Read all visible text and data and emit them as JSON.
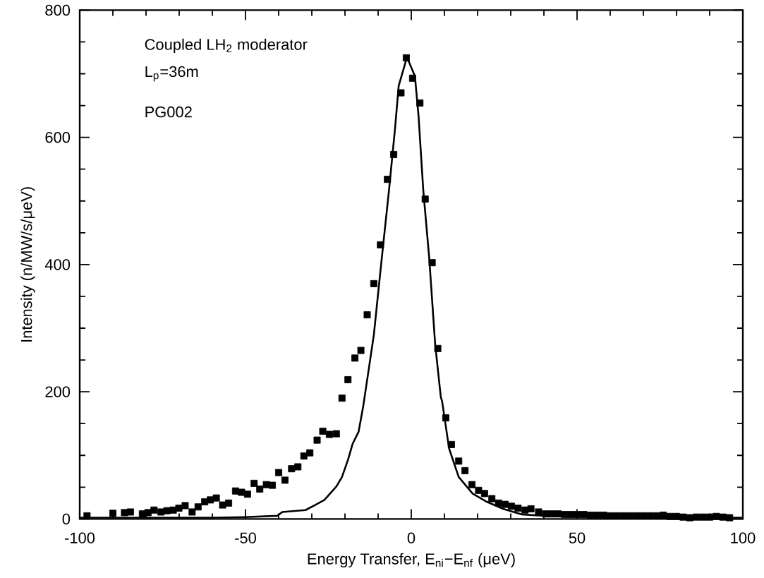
{
  "chart_data": {
    "type": "scatter",
    "xlabel": "Energy Transfer, E$_{ni}$−E$_{nf}$ (μeV)",
    "ylabel": "Intensity (n/MW/s/μeV)",
    "annotations": [
      "Coupled LH$_{2}$ moderator",
      "L$_{p}$=36m",
      "PG002"
    ],
    "xlim": [
      -100,
      100
    ],
    "ylim": [
      0,
      800
    ],
    "xticks": [
      -100,
      -50,
      0,
      50,
      100
    ],
    "yticks": [
      0,
      200,
      400,
      600,
      800
    ],
    "grid": false,
    "series": [
      {
        "marker": "square",
        "color": "#000000",
        "x": [
          -97.8,
          -90,
          -86.5,
          -84.7,
          -81.1,
          -79.4,
          -77.6,
          -75.5,
          -73.7,
          -71.8,
          -70.1,
          -68.2,
          -66.1,
          -64.3,
          -62.3,
          -60.6,
          -58.8,
          -56.9,
          -55.1,
          -53.0,
          -51.2,
          -49.4,
          -47.4,
          -45.7,
          -43.7,
          -41.9,
          -40.0,
          -38.1,
          -36.1,
          -34.2,
          -32.4,
          -30.6,
          -28.4,
          -26.7,
          -24.7,
          -22.6,
          -20.9,
          -19.1,
          -17.0,
          -15.2,
          -13.3,
          -11.3,
          -9.3,
          -7.2,
          -5.3,
          -3.1,
          -1.5,
          0.4,
          2.6,
          4.2,
          6.3,
          8.0,
          10.4,
          12.1,
          14.3,
          16.2,
          18.3,
          20.3,
          22.1,
          24.3,
          26.3,
          28.3,
          30.2,
          32.2,
          34.3,
          36.1,
          38.4,
          40.5,
          42.4,
          44.3,
          46.2,
          48.1,
          50,
          52,
          54,
          56,
          58,
          60,
          62,
          64,
          66,
          68,
          70,
          72,
          74,
          76,
          78,
          80,
          82,
          84,
          86,
          88,
          90,
          92,
          94,
          96
        ],
        "values": [
          5,
          9,
          10,
          11,
          8,
          10,
          14,
          11,
          13,
          14,
          17,
          21,
          11,
          19,
          27,
          30,
          33,
          22,
          25,
          44,
          42,
          39,
          56,
          47,
          54,
          53,
          73,
          61,
          79,
          82,
          99,
          104,
          124,
          138,
          133,
          134,
          190,
          219,
          253,
          265,
          321,
          370,
          431,
          534,
          573,
          670,
          725,
          693,
          654,
          503,
          403,
          268,
          159,
          117,
          91,
          76,
          54,
          45,
          40,
          32,
          25,
          23,
          20,
          17,
          14,
          16,
          11,
          8,
          8,
          8,
          7,
          7,
          7,
          7,
          6,
          6,
          6,
          5,
          5,
          5,
          5,
          5,
          5,
          5,
          5,
          6,
          4,
          4,
          3,
          2,
          3,
          3,
          3,
          4,
          3,
          2
        ]
      },
      {
        "type": "line",
        "marker": "none",
        "line_style": "solid",
        "color": "#000000",
        "x": [
          -100,
          -80,
          -60,
          -50.3,
          -40.4,
          -38.9,
          -31.9,
          -29,
          -26.2,
          -22.6,
          -20.9,
          -19.1,
          -17.7,
          -15.9,
          -14.5,
          -12.7,
          -11.3,
          -9.1,
          -6.7,
          -4.9,
          -3.8,
          -1.3,
          1.1,
          2.2,
          3.6,
          5.4,
          7.2,
          8.9,
          9.3,
          11.4,
          14.3,
          18.5,
          22.8,
          27.7,
          33.4,
          40.4,
          60,
          80,
          100
        ],
        "values": [
          2,
          2,
          2,
          3,
          5,
          11,
          14,
          22,
          30,
          51,
          66,
          93,
          118,
          137,
          177,
          240,
          289,
          400,
          518,
          614,
          681,
          726,
          696,
          633,
          518,
          411,
          275,
          192,
          185,
          111,
          66,
          40,
          27,
          16,
          7,
          5,
          3,
          2,
          2
        ]
      }
    ]
  }
}
